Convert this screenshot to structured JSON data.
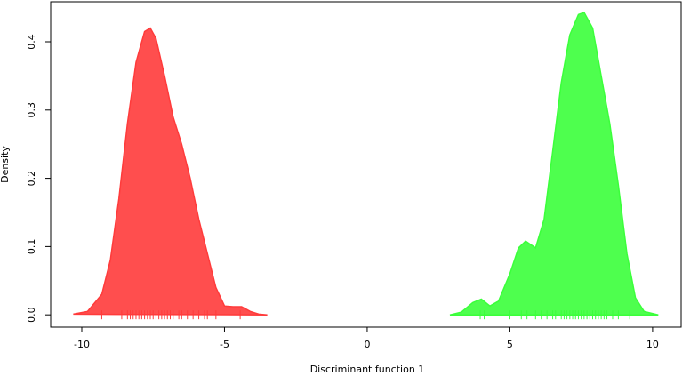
{
  "chart_data": {
    "type": "density",
    "xlabel": "Discriminant function 1",
    "ylabel": "Density",
    "xlim": [
      -11.09,
      11.0
    ],
    "ylim": [
      -0.018,
      0.4586
    ],
    "xticks": [
      -10,
      -5,
      0,
      5,
      10
    ],
    "yticks": [
      {
        "value": 0,
        "label": "0.0"
      },
      {
        "value": 0.1,
        "label": "0.1"
      },
      {
        "value": 0.2,
        "label": "0.2"
      },
      {
        "value": 0.3,
        "label": "0.3"
      },
      {
        "value": 0.4,
        "label": "0.4"
      }
    ],
    "series": [
      {
        "color": "#ff3b3b",
        "x": [
          -10.3,
          -9.8,
          -9.3,
          -9.0,
          -8.7,
          -8.4,
          -8.1,
          -7.8,
          -7.6,
          -7.4,
          -7.1,
          -6.8,
          -6.5,
          -6.2,
          -5.9,
          -5.6,
          -5.3,
          -5.0,
          -4.7,
          -4.4,
          -4.1,
          -3.8,
          -3.5
        ],
        "values": [
          0.001,
          0.005,
          0.03,
          0.08,
          0.17,
          0.28,
          0.37,
          0.415,
          0.42,
          0.405,
          0.35,
          0.29,
          0.25,
          0.2,
          0.14,
          0.09,
          0.04,
          0.013,
          0.012,
          0.012,
          0.005,
          0.001,
          0
        ],
        "rug": [
          -9.3,
          -8.8,
          -8.6,
          -8.4,
          -8.3,
          -8.2,
          -8.1,
          -8.0,
          -7.9,
          -7.8,
          -7.7,
          -7.6,
          -7.5,
          -7.4,
          -7.3,
          -7.2,
          -7.1,
          -7.0,
          -6.9,
          -6.8,
          -6.6,
          -6.5,
          -6.3,
          -6.1,
          -5.9,
          -5.7,
          -5.6,
          -5.3,
          -4.45
        ]
      },
      {
        "color": "#3bff3b",
        "x": [
          2.9,
          3.3,
          3.7,
          4.0,
          4.3,
          4.6,
          5.0,
          5.3,
          5.55,
          5.9,
          6.2,
          6.5,
          6.8,
          7.1,
          7.4,
          7.6,
          7.9,
          8.2,
          8.5,
          8.8,
          9.1,
          9.4,
          9.7,
          10.2
        ],
        "values": [
          0,
          0.004,
          0.018,
          0.023,
          0.013,
          0.02,
          0.06,
          0.098,
          0.108,
          0.098,
          0.14,
          0.24,
          0.34,
          0.41,
          0.44,
          0.443,
          0.42,
          0.35,
          0.28,
          0.19,
          0.09,
          0.025,
          0.005,
          0
        ],
        "rug": [
          3.96,
          4.1,
          5.0,
          5.4,
          5.6,
          5.9,
          6.1,
          6.3,
          6.5,
          6.6,
          6.8,
          6.9,
          7.0,
          7.1,
          7.2,
          7.3,
          7.4,
          7.5,
          7.6,
          7.7,
          7.8,
          7.9,
          8.0,
          8.1,
          8.2,
          8.3,
          8.4,
          8.6,
          8.8,
          9.2
        ]
      }
    ]
  }
}
